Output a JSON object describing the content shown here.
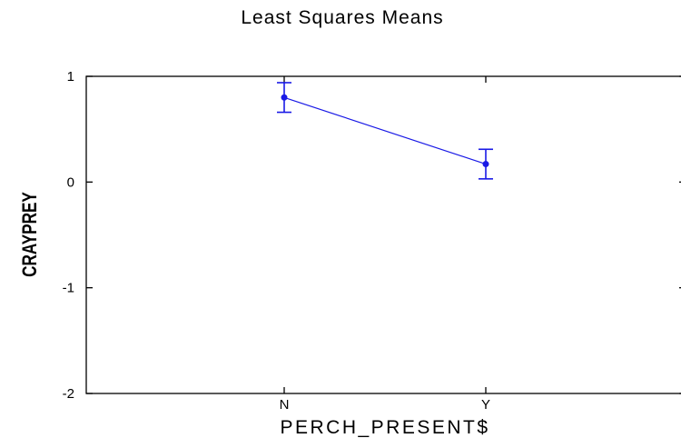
{
  "chart_data": {
    "type": "line",
    "title": "Least Squares Means",
    "xlabel": "PERCH_PRESENT$",
    "ylabel": "CRAYPREY",
    "categories": [
      "N",
      "Y"
    ],
    "series": [
      {
        "values": [
          0.8,
          0.17
        ],
        "error_low": [
          0.66,
          0.03
        ],
        "error_high": [
          0.94,
          0.31
        ]
      }
    ],
    "ylim": [
      -2,
      1
    ],
    "yticks": [
      "1",
      "0",
      "-1",
      "-2"
    ],
    "grid": false,
    "colors": {
      "series": "#1a1ae6",
      "axis": "#000000"
    }
  }
}
